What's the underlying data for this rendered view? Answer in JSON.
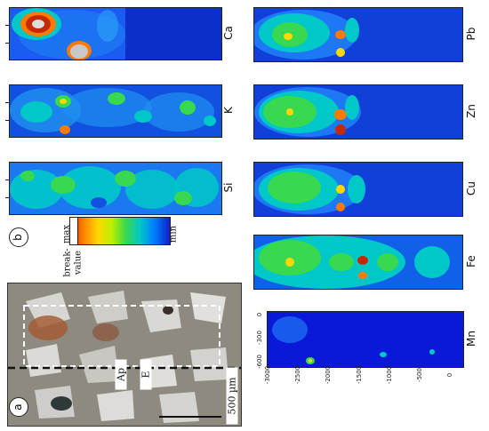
{
  "panel_b": {
    "letter": "b",
    "maps": [
      {
        "element": "Ca"
      },
      {
        "element": "K"
      },
      {
        "element": "Si"
      },
      {
        "element": "Pb"
      },
      {
        "element": "Zn"
      },
      {
        "element": "Cu"
      },
      {
        "element": "Fe"
      },
      {
        "element": "Mn"
      }
    ],
    "colorbar": {
      "max_label": "max",
      "min_label": "min",
      "break_label_line1": "break-",
      "break_label_line2": "value",
      "colors": [
        "#c62900",
        "#ff7a00",
        "#ffd800",
        "#b8f000",
        "#38d850",
        "#00c8c8",
        "#0080ff",
        "#1020c8"
      ]
    },
    "mn_axis": {
      "x_ticks": [
        "-600",
        "-300",
        "0"
      ],
      "y_ticks": [
        "-3000",
        "-2500",
        "-2000",
        "-1500",
        "-1000",
        "-500",
        "0"
      ]
    }
  },
  "panel_a": {
    "letter": "a",
    "horizon_upper": "Ap",
    "horizon_lower": "E",
    "scale_bar": "500 µm"
  }
}
